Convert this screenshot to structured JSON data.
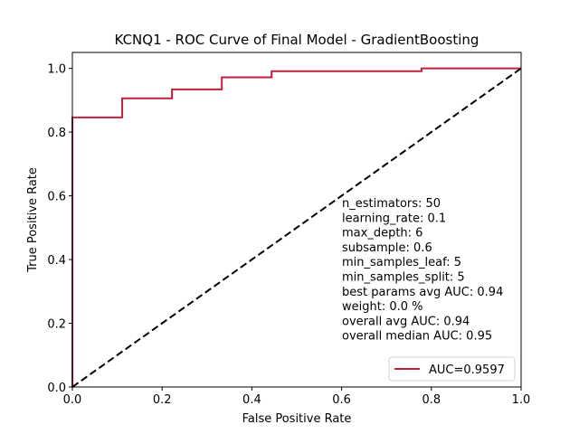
{
  "chart_data": {
    "type": "line",
    "title": "KCNQ1 - ROC Curve of Final Model - GradientBoosting",
    "xlabel": "False Positive Rate",
    "ylabel": "True Positive Rate",
    "xlim": [
      0.0,
      1.0
    ],
    "ylim": [
      0.0,
      1.05
    ],
    "xticks": [
      "0.0",
      "0.2",
      "0.4",
      "0.6",
      "0.8",
      "1.0"
    ],
    "yticks": [
      "0.0",
      "0.2",
      "0.4",
      "0.6",
      "0.8",
      "1.0"
    ],
    "grid": false,
    "legend_position": "lower-right",
    "series": [
      {
        "name": "AUC=0.9597",
        "color": "#c0203e",
        "style": "solid",
        "x": [
          0.0,
          0.0,
          0.111,
          0.111,
          0.222,
          0.222,
          0.333,
          0.333,
          0.444,
          0.444,
          0.778,
          0.778,
          1.0
        ],
        "y": [
          0.0,
          0.846,
          0.846,
          0.906,
          0.906,
          0.934,
          0.934,
          0.972,
          0.972,
          0.991,
          0.991,
          1.0,
          1.0
        ]
      },
      {
        "color": "#000000",
        "style": "dashed",
        "x": [
          0.0,
          1.0
        ],
        "y": [
          0.0,
          1.0
        ]
      }
    ],
    "annotation_lines": [
      "n_estimators: 50",
      "learning_rate: 0.1",
      "max_depth: 6",
      "subsample: 0.6",
      "min_samples_leaf: 5",
      "min_samples_split: 5",
      "best params avg AUC: 0.94",
      "weight: 0.0 %",
      "overall avg AUC: 0.94",
      "overall median AUC: 0.95"
    ]
  }
}
